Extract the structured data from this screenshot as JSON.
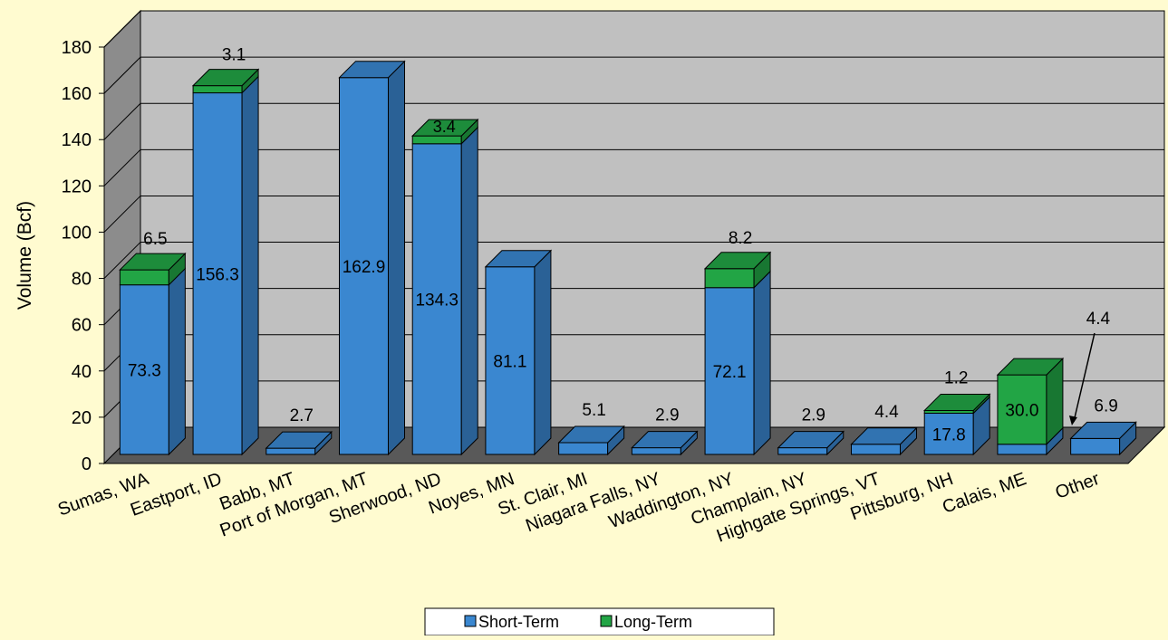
{
  "chart_data": {
    "type": "bar",
    "stacked": true,
    "three_d": true,
    "title": "",
    "ylabel": "Volume (Bcf)",
    "ylim": [
      0,
      180
    ],
    "yticks": [
      0,
      20,
      40,
      60,
      80,
      100,
      120,
      140,
      160,
      180
    ],
    "grid": true,
    "legend_position": "bottom",
    "categories": [
      "Sumas, WA",
      "Eastport, ID",
      "Babb, MT",
      "Port of Morgan, MT",
      "Sherwood, ND",
      "Noyes, MN",
      "St. Clair, MI",
      "Niagara Falls, NY",
      "Waddington, NY",
      "Champlain, NY",
      "Highgate Springs, VT",
      "Pittsburg, NH",
      "Calais, ME",
      "Other"
    ],
    "series": [
      {
        "name": "Short-Term",
        "color": "#3A87D0",
        "values": [
          73.3,
          156.3,
          2.7,
          162.9,
          134.3,
          81.1,
          5.1,
          2.9,
          72.1,
          2.9,
          4.4,
          17.8,
          4.4,
          6.9
        ],
        "labels": [
          "73.3",
          "156.3",
          "2.7",
          "162.9",
          "134.3",
          "81.1",
          "5.1",
          "2.9",
          "72.1",
          "2.9",
          "4.4",
          "17.8",
          "4.4",
          "6.9"
        ]
      },
      {
        "name": "Long-Term",
        "color": "#22A545",
        "values": [
          6.5,
          3.1,
          0,
          0,
          3.4,
          0,
          0,
          0,
          8.2,
          0,
          0,
          1.2,
          30.0,
          0
        ],
        "labels": [
          "6.5",
          "3.1",
          "",
          "",
          "3.4",
          "",
          "",
          "",
          "8.2",
          "",
          "",
          "1.2",
          "30.0",
          ""
        ]
      }
    ]
  }
}
